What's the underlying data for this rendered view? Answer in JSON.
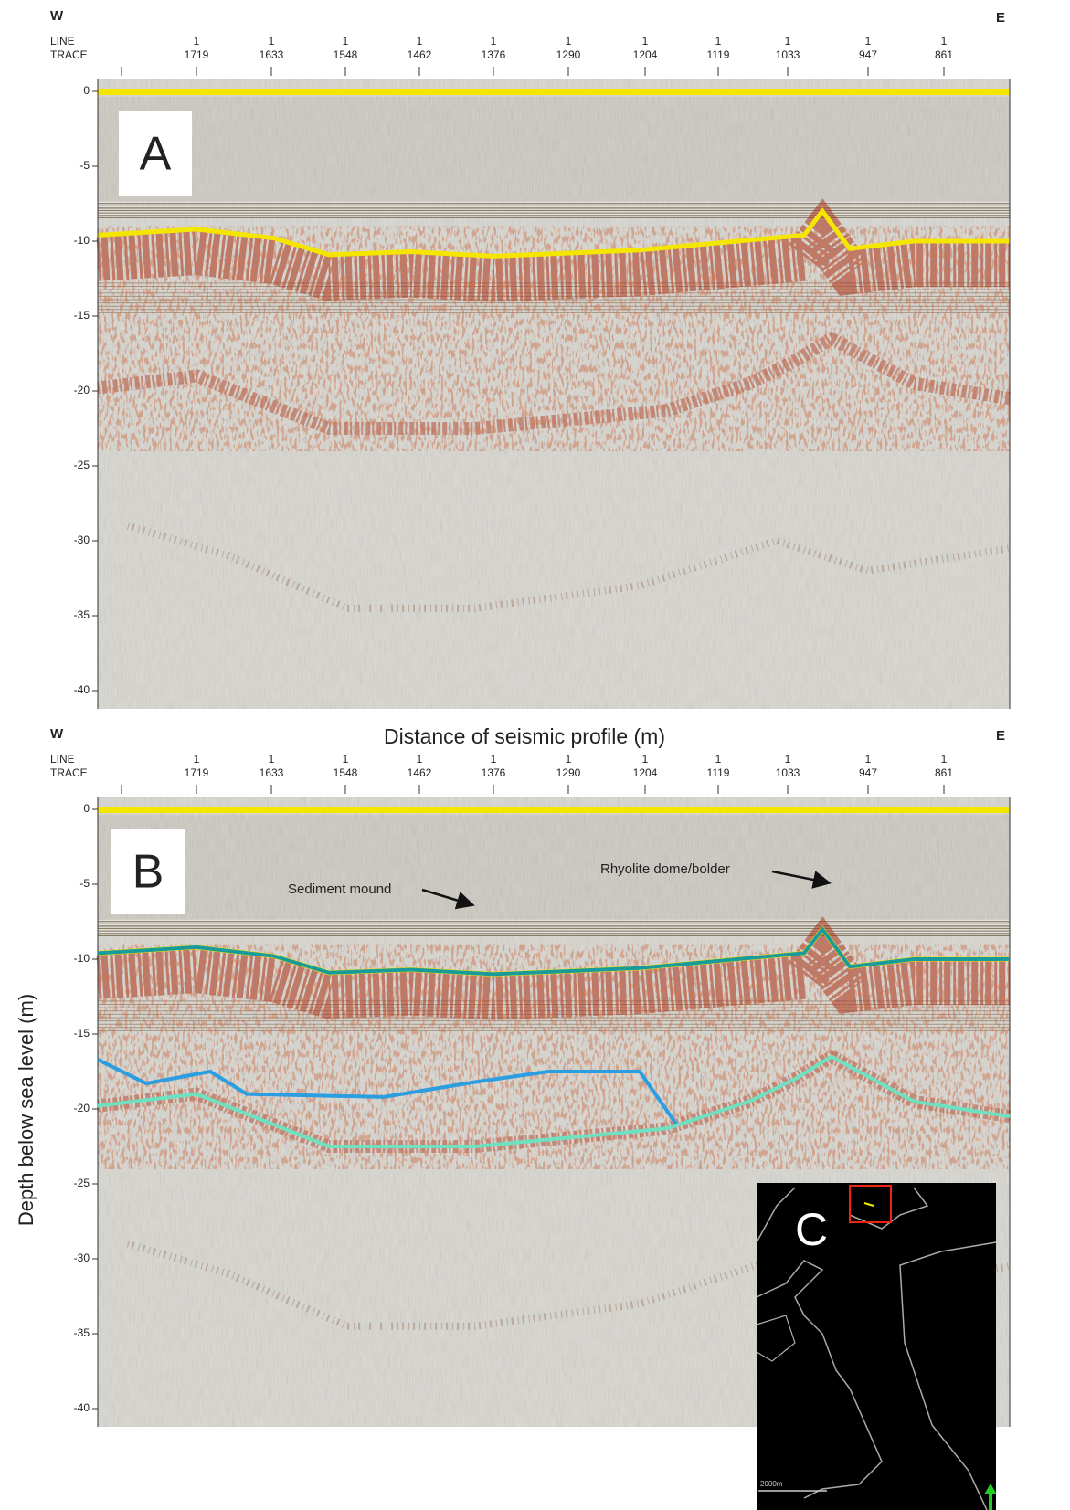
{
  "panels": [
    {
      "label": "A",
      "west": "W",
      "east": "E",
      "line_heading": "LINE",
      "trace_heading": "TRACE",
      "traces": [
        {
          "line": "1",
          "trace": "1719"
        },
        {
          "line": "1",
          "trace": "1633"
        },
        {
          "line": "1",
          "trace": "1548"
        },
        {
          "line": "1",
          "trace": "1462"
        },
        {
          "line": "1",
          "trace": "1376"
        },
        {
          "line": "1",
          "trace": "1290"
        },
        {
          "line": "1",
          "trace": "1204"
        },
        {
          "line": "1",
          "trace": "1119"
        },
        {
          "line": "1",
          "trace": "1033"
        },
        {
          "line": "1",
          "trace": "947"
        },
        {
          "line": "1",
          "trace": "861"
        }
      ],
      "depth_ticks": [
        0,
        -5,
        -10,
        -15,
        -20,
        -25,
        -30,
        -35,
        -40
      ]
    },
    {
      "label": "B",
      "title": "Distance of seismic profile (m)",
      "west": "W",
      "east": "E",
      "line_heading": "LINE",
      "trace_heading": "TRACE",
      "traces": [
        {
          "line": "1",
          "trace": "1719"
        },
        {
          "line": "1",
          "trace": "1633"
        },
        {
          "line": "1",
          "trace": "1548"
        },
        {
          "line": "1",
          "trace": "1462"
        },
        {
          "line": "1",
          "trace": "1376"
        },
        {
          "line": "1",
          "trace": "1290"
        },
        {
          "line": "1",
          "trace": "1204"
        },
        {
          "line": "1",
          "trace": "1119"
        },
        {
          "line": "1",
          "trace": "1033"
        },
        {
          "line": "1",
          "trace": "947"
        },
        {
          "line": "1",
          "trace": "861"
        }
      ],
      "depth_ticks": [
        0,
        -5,
        -10,
        -15,
        -20,
        -25,
        -30,
        -35,
        -40
      ],
      "annotations": [
        "Sediment mound",
        "Rhyolite dome/bolder"
      ]
    }
  ],
  "y_axis_label": "Depth below sea level (m)",
  "inset": {
    "label": "C",
    "scale": "2000m"
  }
}
